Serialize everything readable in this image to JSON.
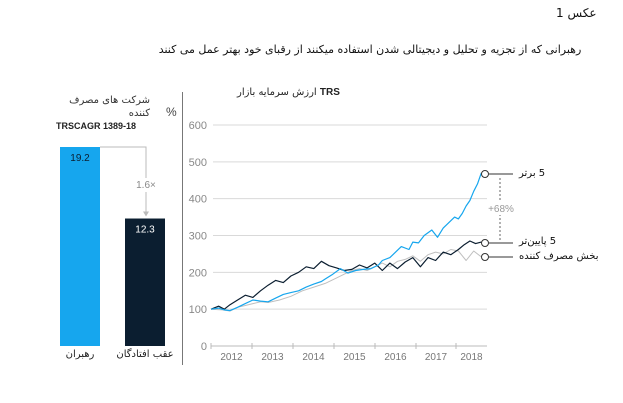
{
  "figure_label": "عکس 1",
  "title": "رهبرانی که از  تجزیه و تحلیل و دیجیتالی شدن استفاده میکنند از رقبای خود بهتر عمل می کنند",
  "colors": {
    "leaders": "#16a6ee",
    "laggards": "#0b1e30",
    "sector": "#bfbfbf",
    "grid": "#d9d9d9",
    "axis": "#888888"
  },
  "chart_data": [
    {
      "type": "bar",
      "title": "شرکت های مصرف کننده",
      "subtitle": "TRSCAGR  1389-18",
      "unit": "%",
      "categories": [
        "رهبران",
        "عقب افتادگان"
      ],
      "values": [
        19.2,
        12.3
      ],
      "value_labels": [
        "19.2",
        "12.3"
      ],
      "annotation": "1.6×",
      "ylim": [
        0,
        19.2
      ]
    },
    {
      "type": "line",
      "title": "ارزش سرمایه بازار",
      "title_suffix": "TRS",
      "ylim": [
        0,
        600
      ],
      "yticks": [
        "0",
        "100",
        "200",
        "300",
        "400",
        "500",
        "600"
      ],
      "xticks": [
        "2012",
        "2013",
        "2014",
        "2015",
        "2016",
        "2017",
        "2018"
      ],
      "xlim": [
        2011.5,
        2018.75
      ],
      "annotation": "+68%",
      "series": [
        {
          "name": "5 برتر",
          "color_key": "leaders",
          "x": [
            2011.5,
            2011.7,
            2011.85,
            2012.0,
            2012.2,
            2012.4,
            2012.6,
            2012.8,
            2013.0,
            2013.2,
            2013.4,
            2013.6,
            2013.8,
            2014.0,
            2014.2,
            2014.4,
            2014.5,
            2014.7,
            2014.9,
            2015.1,
            2015.3,
            2015.5,
            2015.7,
            2015.9,
            2016.0,
            2016.2,
            2016.35,
            2016.5,
            2016.7,
            2016.8,
            2016.95,
            2017.1,
            2017.3,
            2017.45,
            2017.6,
            2017.75,
            2017.9,
            2018.0,
            2018.1,
            2018.2,
            2018.3,
            2018.4,
            2018.5,
            2018.6
          ],
          "y": [
            100,
            103,
            98,
            96,
            105,
            115,
            125,
            122,
            120,
            130,
            140,
            145,
            150,
            160,
            168,
            175,
            182,
            195,
            210,
            198,
            205,
            208,
            210,
            220,
            232,
            240,
            255,
            270,
            262,
            282,
            280,
            300,
            315,
            295,
            320,
            335,
            350,
            345,
            360,
            380,
            395,
            420,
            440,
            470
          ]
        },
        {
          "name": "5 پایین‌تر",
          "color_key": "laggards",
          "x": [
            2011.5,
            2011.7,
            2011.85,
            2012.0,
            2012.2,
            2012.4,
            2012.6,
            2012.8,
            2013.0,
            2013.2,
            2013.4,
            2013.6,
            2013.8,
            2014.0,
            2014.2,
            2014.4,
            2014.6,
            2014.8,
            2015.0,
            2015.2,
            2015.4,
            2015.6,
            2015.8,
            2016.0,
            2016.2,
            2016.4,
            2016.6,
            2016.8,
            2017.0,
            2017.2,
            2017.4,
            2017.6,
            2017.8,
            2018.0,
            2018.15,
            2018.3,
            2018.45,
            2018.6
          ],
          "y": [
            100,
            108,
            100,
            112,
            125,
            138,
            132,
            150,
            165,
            178,
            172,
            190,
            200,
            215,
            210,
            230,
            218,
            212,
            205,
            208,
            220,
            212,
            225,
            205,
            225,
            210,
            228,
            240,
            215,
            240,
            232,
            255,
            248,
            262,
            275,
            285,
            278,
            282
          ]
        },
        {
          "name": "بخش مصرف کننده",
          "color_key": "sector",
          "x": [
            2011.5,
            2011.8,
            2012.0,
            2012.2,
            2012.4,
            2012.6,
            2012.8,
            2013.0,
            2013.3,
            2013.6,
            2013.9,
            2014.2,
            2014.5,
            2014.8,
            2015.0,
            2015.2,
            2015.4,
            2015.6,
            2015.8,
            2016.0,
            2016.2,
            2016.4,
            2016.6,
            2016.8,
            2017.0,
            2017.2,
            2017.4,
            2017.6,
            2017.8,
            2018.0,
            2018.2,
            2018.4,
            2018.6
          ],
          "y": [
            100,
            98,
            95,
            105,
            110,
            115,
            120,
            118,
            125,
            135,
            150,
            160,
            170,
            185,
            195,
            205,
            210,
            205,
            215,
            225,
            215,
            230,
            235,
            245,
            230,
            248,
            255,
            250,
            262,
            258,
            232,
            258,
            242
          ]
        }
      ]
    }
  ]
}
